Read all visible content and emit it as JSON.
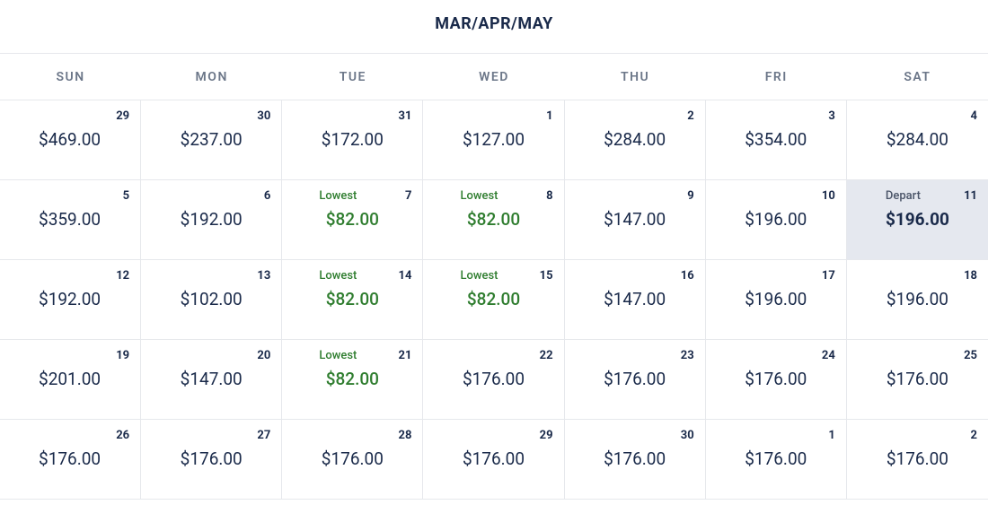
{
  "title": "MAR/APR/MAY",
  "dayHeaders": [
    "SUN",
    "MON",
    "TUE",
    "WED",
    "THU",
    "FRI",
    "SAT"
  ],
  "labels": {
    "lowest": "Lowest",
    "depart": "Depart"
  },
  "colors": {
    "text": "#1a2a4a",
    "muted": "#6b7688",
    "lowest": "#2f7d2f",
    "border": "#e6e8ec",
    "selectedBg": "#e5e8ef",
    "background": "#ffffff"
  },
  "cells": [
    {
      "day": "29",
      "price": "$469.00"
    },
    {
      "day": "30",
      "price": "$237.00"
    },
    {
      "day": "31",
      "price": "$172.00"
    },
    {
      "day": "1",
      "price": "$127.00"
    },
    {
      "day": "2",
      "price": "$284.00"
    },
    {
      "day": "3",
      "price": "$354.00"
    },
    {
      "day": "4",
      "price": "$284.00"
    },
    {
      "day": "5",
      "price": "$359.00"
    },
    {
      "day": "6",
      "price": "$192.00"
    },
    {
      "day": "7",
      "price": "$82.00",
      "tag": "lowest"
    },
    {
      "day": "8",
      "price": "$82.00",
      "tag": "lowest"
    },
    {
      "day": "9",
      "price": "$147.00"
    },
    {
      "day": "10",
      "price": "$196.00"
    },
    {
      "day": "11",
      "price": "$196.00",
      "tag": "depart",
      "selected": true
    },
    {
      "day": "12",
      "price": "$192.00"
    },
    {
      "day": "13",
      "price": "$102.00"
    },
    {
      "day": "14",
      "price": "$82.00",
      "tag": "lowest"
    },
    {
      "day": "15",
      "price": "$82.00",
      "tag": "lowest"
    },
    {
      "day": "16",
      "price": "$147.00"
    },
    {
      "day": "17",
      "price": "$196.00"
    },
    {
      "day": "18",
      "price": "$196.00"
    },
    {
      "day": "19",
      "price": "$201.00"
    },
    {
      "day": "20",
      "price": "$147.00"
    },
    {
      "day": "21",
      "price": "$82.00",
      "tag": "lowest"
    },
    {
      "day": "22",
      "price": "$176.00"
    },
    {
      "day": "23",
      "price": "$176.00"
    },
    {
      "day": "24",
      "price": "$176.00"
    },
    {
      "day": "25",
      "price": "$176.00"
    },
    {
      "day": "26",
      "price": "$176.00"
    },
    {
      "day": "27",
      "price": "$176.00"
    },
    {
      "day": "28",
      "price": "$176.00"
    },
    {
      "day": "29",
      "price": "$176.00"
    },
    {
      "day": "30",
      "price": "$176.00"
    },
    {
      "day": "1",
      "price": "$176.00"
    },
    {
      "day": "2",
      "price": "$176.00"
    }
  ]
}
